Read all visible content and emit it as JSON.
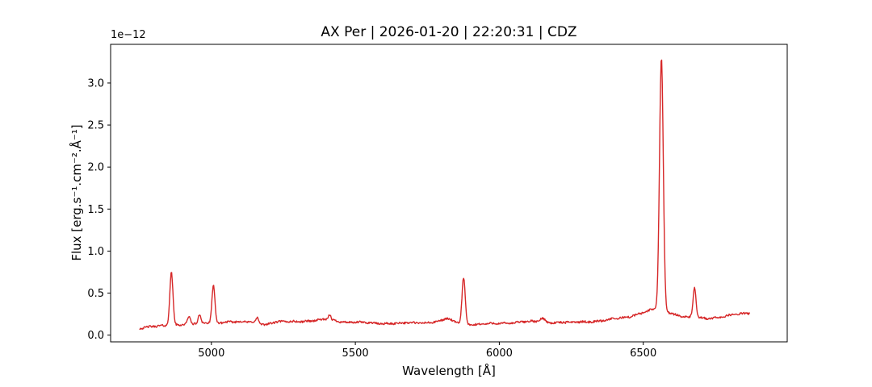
{
  "chart_data": {
    "type": "line",
    "title": "AX Per | 2026-01-20 | 22:20:31 | CDZ",
    "xlabel": "Wavelength [Å]",
    "ylabel": "Flux [erg.s⁻¹.cm⁻².Å⁻¹]",
    "offset_label": "1e−12",
    "xlim": [
      4650,
      7000
    ],
    "ylim": [
      -0.08,
      3.46
    ],
    "xticks": [
      5000,
      5500,
      6000,
      6500
    ],
    "yticks": [
      0.0,
      0.5,
      1.0,
      1.5,
      2.0,
      2.5,
      3.0
    ],
    "grid": false,
    "legend": "none",
    "line_color": "#d62728",
    "series_name": "AX Per spectrum",
    "flux_unit_scale": "1e-12",
    "wavelength_range": [
      4750,
      6870
    ],
    "sample_step": 2,
    "noise_amplitude": 0.012,
    "continuum": [
      [
        4750,
        0.085
      ],
      [
        4800,
        0.1
      ],
      [
        4850,
        0.115
      ],
      [
        4900,
        0.13
      ],
      [
        4950,
        0.135
      ],
      [
        5000,
        0.15
      ],
      [
        5050,
        0.155
      ],
      [
        5100,
        0.155
      ],
      [
        5150,
        0.16
      ],
      [
        5185,
        0.125
      ],
      [
        5220,
        0.15
      ],
      [
        5260,
        0.16
      ],
      [
        5300,
        0.165
      ],
      [
        5350,
        0.17
      ],
      [
        5400,
        0.185
      ],
      [
        5430,
        0.175
      ],
      [
        5470,
        0.155
      ],
      [
        5500,
        0.15
      ],
      [
        5550,
        0.145
      ],
      [
        5600,
        0.14
      ],
      [
        5650,
        0.14
      ],
      [
        5700,
        0.145
      ],
      [
        5750,
        0.15
      ],
      [
        5800,
        0.165
      ],
      [
        5850,
        0.15
      ],
      [
        5900,
        0.125
      ],
      [
        5950,
        0.13
      ],
      [
        6000,
        0.14
      ],
      [
        6050,
        0.15
      ],
      [
        6100,
        0.16
      ],
      [
        6200,
        0.15
      ],
      [
        6250,
        0.15
      ],
      [
        6300,
        0.16
      ],
      [
        6350,
        0.17
      ],
      [
        6400,
        0.19
      ],
      [
        6450,
        0.22
      ],
      [
        6500,
        0.27
      ],
      [
        6540,
        0.31
      ],
      [
        6563,
        0.3
      ],
      [
        6600,
        0.26
      ],
      [
        6630,
        0.23
      ],
      [
        6660,
        0.21
      ],
      [
        6700,
        0.2
      ],
      [
        6720,
        0.195
      ],
      [
        6750,
        0.21
      ],
      [
        6800,
        0.235
      ],
      [
        6840,
        0.25
      ],
      [
        6870,
        0.26
      ]
    ],
    "emission_lines": [
      {
        "center": 4861,
        "amplitude": 0.63,
        "sigma": 5.5
      },
      {
        "center": 4922,
        "amplitude": 0.09,
        "sigma": 4.5
      },
      {
        "center": 4959,
        "amplitude": 0.1,
        "sigma": 4.5
      },
      {
        "center": 5007,
        "amplitude": 0.45,
        "sigma": 5
      },
      {
        "center": 5160,
        "amplitude": 0.065,
        "sigma": 4
      },
      {
        "center": 5411,
        "amplitude": 0.06,
        "sigma": 4
      },
      {
        "center": 5820,
        "amplitude": 0.035,
        "sigma": 12
      },
      {
        "center": 5876,
        "amplitude": 0.55,
        "sigma": 5.5
      },
      {
        "center": 6150,
        "amplitude": 0.045,
        "sigma": 9
      },
      {
        "center": 6563,
        "amplitude": 3.0,
        "sigma": 6.5
      },
      {
        "center": 6678,
        "amplitude": 0.36,
        "sigma": 5
      }
    ]
  }
}
